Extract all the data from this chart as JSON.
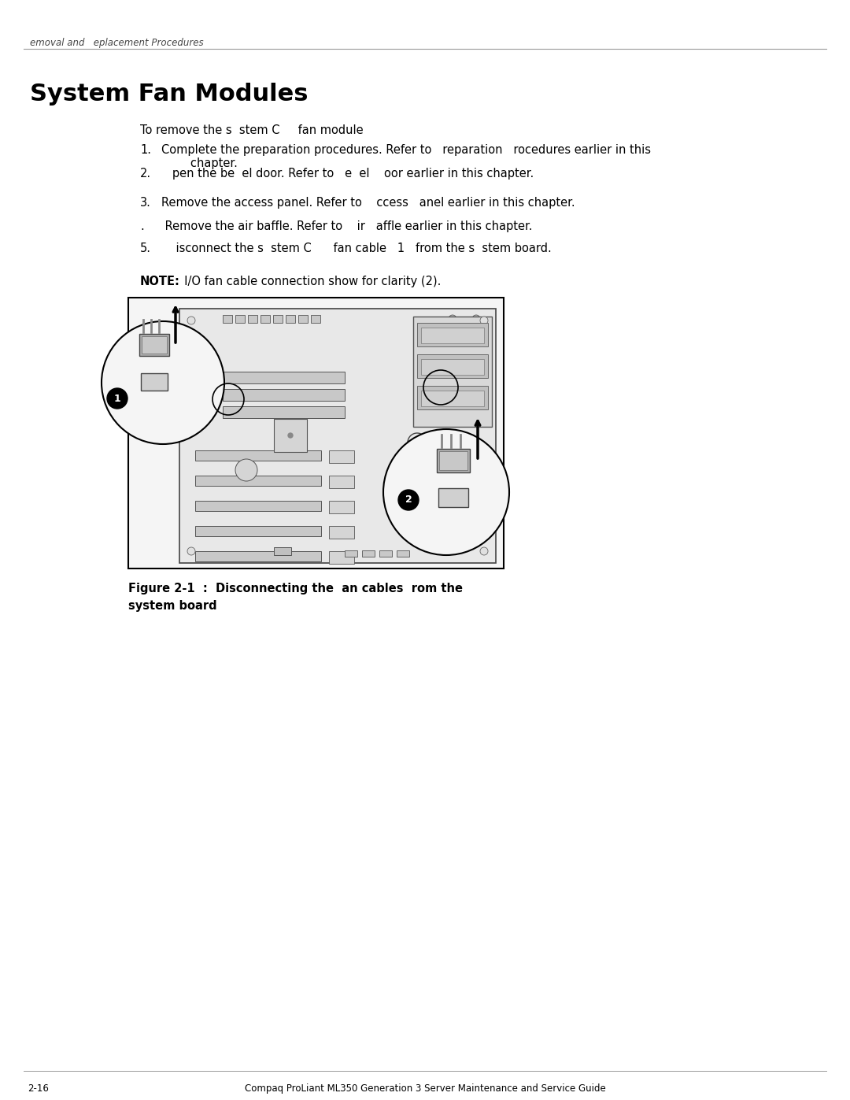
{
  "bg_color": "#ffffff",
  "header_text": "emoval and   eplacement Procedures",
  "title": "System Fan Modules",
  "intro_text": "To remove the s  stem C     fan module",
  "steps": [
    {
      "num": "1.",
      "text": "Complete the preparation procedures. Refer to   reparation   rocedures earlier in this\n        chapter."
    },
    {
      "num": "2.",
      "text": "   pen the be  el door. Refer to   e  el    oor earlier in this chapter."
    },
    {
      "num": "3.",
      "text": "Remove the access panel. Refer to    ccess   anel earlier in this chapter."
    },
    {
      "num": ".",
      "text": " Remove the air baffle. Refer to    ir   affle earlier in this chapter."
    },
    {
      "num": "5.",
      "text": "    isconnect the s  stem C      fan cable   1   from the s  stem board."
    }
  ],
  "note_bold": "NOTE:",
  "note_text": "  I/O fan cable connection show for clarity (2).",
  "fig_caption_line1": "Figure 2-1  :  Disconnecting the  an cables  rom the",
  "fig_caption_line2": "system board",
  "footer_left": "2-16",
  "footer_center": "Compaq ProLiant ML350 Generation 3 Server Maintenance and Service Guide",
  "text_color": "#000000",
  "gray_line_color": "#999999"
}
